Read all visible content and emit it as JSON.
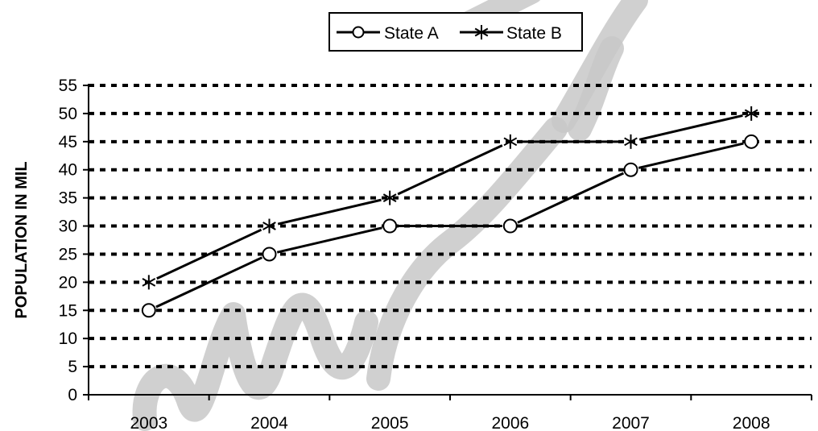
{
  "chart_data": {
    "type": "line",
    "categories": [
      "2003",
      "2004",
      "2005",
      "2006",
      "2007",
      "2008"
    ],
    "series": [
      {
        "name": "State A",
        "marker": "circle",
        "values": [
          15,
          25,
          30,
          30,
          40,
          45
        ]
      },
      {
        "name": "State B",
        "marker": "asterisk",
        "values": [
          20,
          30,
          35,
          45,
          45,
          50
        ]
      }
    ],
    "title": "",
    "xlabel": "",
    "ylabel": "POPULATION IN MIL",
    "ylim": [
      0,
      55
    ],
    "yticks": [
      0,
      5,
      10,
      15,
      20,
      25,
      30,
      35,
      40,
      45,
      50,
      55
    ],
    "grid": "dashed-horizontal",
    "legend_position": "top-center",
    "line_color": "#000000",
    "grid_color": "#000000",
    "watermark_color": "#c8c8c8"
  }
}
